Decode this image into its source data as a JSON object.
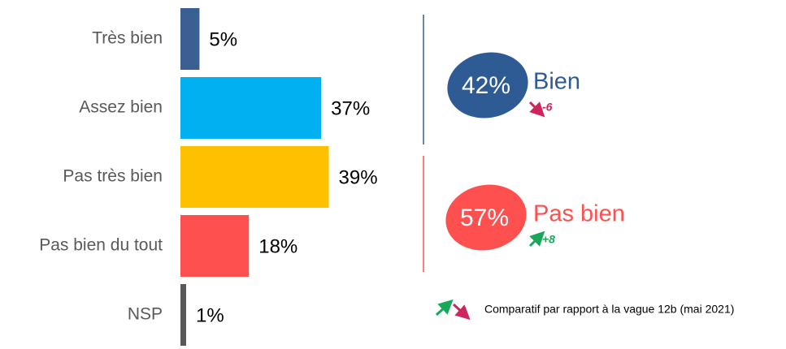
{
  "chart_data": {
    "type": "bar",
    "orientation": "horizontal",
    "categories": [
      "Très bien",
      "Assez bien",
      "Pas très bien",
      "Pas bien du tout",
      "NSP"
    ],
    "values": [
      5,
      37,
      39,
      18,
      1
    ],
    "value_labels": [
      "5%",
      "37%",
      "39%",
      "18%",
      "1%"
    ],
    "colors": [
      "#3a5f93",
      "#00b0f0",
      "#ffc000",
      "#ff5050",
      "#595959"
    ],
    "groups": [
      {
        "value": 42,
        "value_label": "42%",
        "label": "Bien",
        "color": "#2e5b94",
        "change": -6
      },
      {
        "value": 57,
        "value_label": "57%",
        "label": "Pas bien",
        "color": "#ff5050",
        "change": 8,
        "change_label": "+8"
      }
    ],
    "note": "Comparatif par rapport à la vague 12b (mai 2021)"
  }
}
